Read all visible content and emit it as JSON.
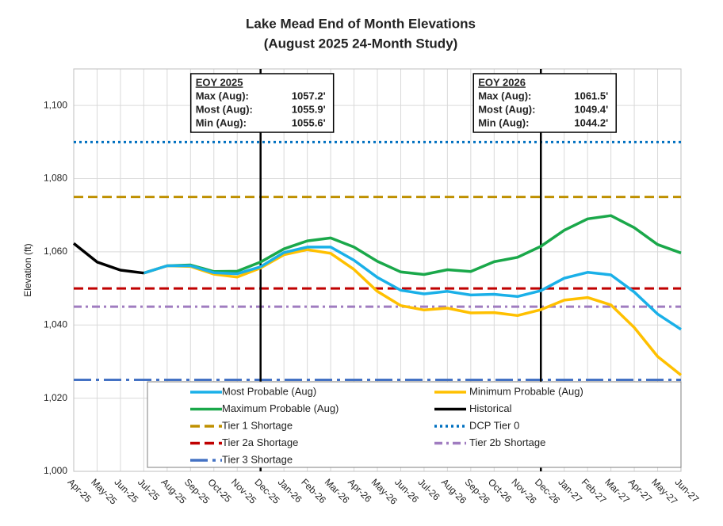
{
  "chart_data": {
    "type": "line",
    "title": "Lake Mead End of Month Elevations",
    "subtitle": "(August 2025 24-Month Study)",
    "y_label": "Elevation (ft)",
    "categories": [
      "Apr-25",
      "May-25",
      "Jun-25",
      "Jul-25",
      "Aug-25",
      "Sep-25",
      "Oct-25",
      "Nov-25",
      "Dec-25",
      "Jan-26",
      "Feb-26",
      "Mar-26",
      "Apr-26",
      "May-26",
      "Jun-26",
      "Jul-26",
      "Aug-26",
      "Sep-26",
      "Oct-26",
      "Nov-26",
      "Dec-26",
      "Jan-27",
      "Feb-27",
      "Mar-27",
      "Apr-27",
      "May-27",
      "Jun-27"
    ],
    "series": [
      {
        "name": "Most Probable (Aug)",
        "color": "#1ab0e8",
        "values": [
          null,
          null,
          null,
          1054.2,
          1056.2,
          1056.2,
          1054.3,
          1054.0,
          1055.9,
          1059.8,
          1061.3,
          1061.3,
          1057.7,
          1053.0,
          1049.5,
          1048.5,
          1049.2,
          1048.2,
          1048.4,
          1047.8,
          1049.4,
          1052.8,
          1054.4,
          1053.7,
          1049.0,
          1043.0,
          1038.8
        ]
      },
      {
        "name": "Minimum Probable (Aug)",
        "color": "#ffc000",
        "values": [
          null,
          null,
          null,
          1054.2,
          1056.2,
          1056.0,
          1053.9,
          1053.1,
          1055.6,
          1059.2,
          1060.6,
          1059.6,
          1055.2,
          1049.2,
          1045.3,
          1044.1,
          1044.6,
          1043.3,
          1043.4,
          1042.6,
          1044.2,
          1046.8,
          1047.5,
          1045.5,
          1039.3,
          1031.4,
          1026.3
        ]
      },
      {
        "name": "Maximum Probable (Aug)",
        "color": "#1aa84a",
        "values": [
          null,
          null,
          null,
          1054.2,
          1056.2,
          1056.4,
          1054.6,
          1054.7,
          1057.2,
          1060.8,
          1063.0,
          1063.8,
          1061.3,
          1057.4,
          1054.5,
          1053.8,
          1055.1,
          1054.6,
          1057.3,
          1058.5,
          1061.5,
          1065.9,
          1069.0,
          1069.9,
          1066.6,
          1062.0,
          1059.7
        ]
      },
      {
        "name": "Historical",
        "color": "#000000",
        "values": [
          1062.3,
          1057.2,
          1055.0,
          1054.2,
          null,
          null,
          null,
          null,
          null,
          null,
          null,
          null,
          null,
          null,
          null,
          null,
          null,
          null,
          null,
          null,
          null,
          null,
          null,
          null,
          null,
          null,
          null
        ]
      }
    ],
    "reference_lines": [
      {
        "name": "Tier 1 Shortage",
        "color": "#bf9000",
        "value": 1075,
        "style": "dashed"
      },
      {
        "name": "DCP Tier 0",
        "color": "#0070c0",
        "value": 1090,
        "style": "dotted"
      },
      {
        "name": "Tier 2a Shortage",
        "color": "#c00000",
        "value": 1050,
        "style": "dashed"
      },
      {
        "name": "Tier 2b Shortage",
        "color": "#a07cc0",
        "value": 1045,
        "style": "dashdot"
      },
      {
        "name": "Tier 3 Shortage",
        "color": "#4472c4",
        "value": 1025,
        "style": "longdashdot"
      }
    ],
    "annotations": [
      {
        "x": "Dec-25",
        "title": "EOY 2025",
        "lines": [
          {
            "label": "Max (Aug):",
            "value": "1057.2'"
          },
          {
            "label": "Most (Aug):",
            "value": "1055.9'"
          },
          {
            "label": "Min (Aug):",
            "value": "1055.6'"
          }
        ]
      },
      {
        "x": "Dec-26",
        "title": "EOY 2026",
        "lines": [
          {
            "label": "Max (Aug):",
            "value": "1061.5'"
          },
          {
            "label": "Most (Aug):",
            "value": "1049.4'"
          },
          {
            "label": "Min (Aug):",
            "value": "1044.2'"
          }
        ]
      }
    ],
    "ylim": [
      1000,
      1110
    ],
    "yticks": [
      {
        "value": 1000,
        "label": "1,000"
      },
      {
        "value": 1020,
        "label": "1,020"
      },
      {
        "value": 1040,
        "label": "1,040"
      },
      {
        "value": 1060,
        "label": "1,060"
      },
      {
        "value": 1080,
        "label": "1,080"
      },
      {
        "value": 1100,
        "label": "1,100"
      }
    ],
    "grid": true
  }
}
